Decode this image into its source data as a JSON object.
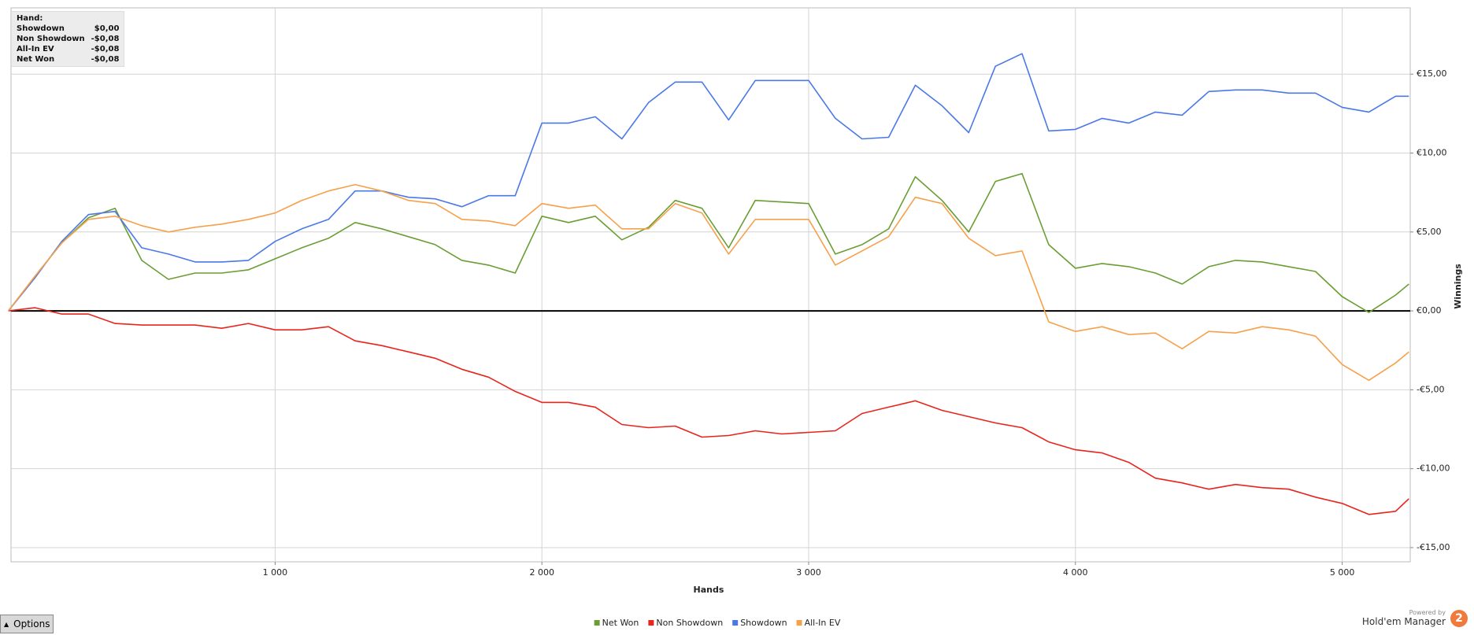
{
  "info_box": {
    "title": "Hand:",
    "rows": [
      [
        "Showdown",
        "$0,00"
      ],
      [
        "Non Showdown",
        "-$0,08"
      ],
      [
        "All-In EV",
        "-$0,08"
      ],
      [
        "Net Won",
        "-$0,08"
      ]
    ]
  },
  "options_button": "Options",
  "powered_by": "Powered by",
  "brand": "Hold'em Manager",
  "logo": "2",
  "chart_data": {
    "type": "line",
    "x_label": "Hands",
    "y_label": "Winnings",
    "xlim": [
      10,
      5255
    ],
    "ylim": [
      -15.9,
      19.2
    ],
    "xticks": [
      {
        "value": 1000,
        "label": "1 000"
      },
      {
        "value": 2000,
        "label": "2 000"
      },
      {
        "value": 3000,
        "label": "3 000"
      },
      {
        "value": 4000,
        "label": "4 000"
      },
      {
        "value": 5000,
        "label": "5 000"
      }
    ],
    "yticks": [
      {
        "value": -15,
        "label": "-€15,00"
      },
      {
        "value": -10,
        "label": "-€10,00"
      },
      {
        "value": -5,
        "label": "-€5,00"
      },
      {
        "value": 0,
        "label": "€0,00"
      },
      {
        "value": 5,
        "label": "€5,00"
      },
      {
        "value": 10,
        "label": "€10,00"
      },
      {
        "value": 15,
        "label": "€15,00"
      }
    ],
    "grid": true,
    "legend": "bottom",
    "x": [
      0,
      100,
      200,
      300,
      400,
      500,
      600,
      700,
      800,
      900,
      1000,
      1100,
      1200,
      1300,
      1400,
      1500,
      1600,
      1700,
      1800,
      1900,
      2000,
      2100,
      2200,
      2300,
      2400,
      2500,
      2600,
      2700,
      2800,
      2900,
      3000,
      3100,
      3200,
      3300,
      3400,
      3500,
      3600,
      3700,
      3800,
      3900,
      4000,
      4100,
      4200,
      4300,
      4400,
      4500,
      4600,
      4700,
      4800,
      4900,
      5000,
      5100,
      5200,
      5250
    ],
    "series": [
      {
        "name": "Net Won",
        "color": "#6a9e34",
        "values": [
          0,
          2.2,
          4.3,
          5.9,
          6.5,
          3.2,
          2.0,
          2.4,
          2.4,
          2.6,
          3.3,
          4.0,
          4.6,
          5.6,
          5.2,
          4.7,
          4.2,
          3.2,
          2.9,
          2.4,
          6.0,
          5.6,
          6.0,
          4.5,
          5.3,
          7.0,
          6.5,
          4.0,
          7.0,
          6.9,
          6.8,
          3.6,
          4.2,
          5.2,
          8.5,
          7.0,
          5.0,
          8.2,
          8.7,
          4.2,
          2.7,
          3.0,
          2.8,
          2.4,
          1.7,
          2.8,
          3.2,
          3.1,
          2.8,
          2.5,
          0.9,
          -0.1,
          1.0,
          1.7
        ]
      },
      {
        "name": "Non Showdown",
        "color": "#e8241c",
        "values": [
          0,
          0.2,
          -0.2,
          -0.2,
          -0.8,
          -0.9,
          -0.9,
          -0.9,
          -1.1,
          -0.8,
          -1.2,
          -1.2,
          -1.0,
          -1.9,
          -2.2,
          -2.6,
          -3.0,
          -3.7,
          -4.2,
          -5.1,
          -5.8,
          -5.8,
          -6.1,
          -7.2,
          -7.4,
          -7.3,
          -8.0,
          -7.9,
          -7.6,
          -7.8,
          -7.7,
          -7.6,
          -6.5,
          -6.1,
          -5.7,
          -6.3,
          -6.7,
          -7.1,
          -7.4,
          -8.3,
          -8.8,
          -9.0,
          -9.6,
          -10.6,
          -10.9,
          -11.3,
          -11.0,
          -11.2,
          -11.3,
          -11.8,
          -12.2,
          -12.9,
          -12.7,
          -11.9
        ]
      },
      {
        "name": "Showdown",
        "color": "#4a78e8",
        "values": [
          0,
          2.1,
          4.4,
          6.1,
          6.3,
          4.0,
          3.6,
          3.1,
          3.1,
          3.2,
          4.4,
          5.2,
          5.8,
          7.6,
          7.6,
          7.2,
          7.1,
          6.6,
          7.3,
          7.3,
          11.9,
          11.9,
          12.3,
          10.9,
          13.2,
          14.5,
          14.5,
          12.1,
          14.6,
          14.6,
          14.6,
          12.2,
          10.9,
          11.0,
          14.3,
          13.0,
          11.3,
          15.5,
          16.3,
          11.4,
          11.5,
          12.2,
          11.9,
          12.6,
          12.4,
          13.9,
          14.0,
          14.0,
          13.8,
          13.8,
          12.9,
          12.6,
          13.6,
          13.6
        ]
      },
      {
        "name": "All-In EV",
        "color": "#f7a04a",
        "values": [
          0,
          2.2,
          4.3,
          5.8,
          6.0,
          5.4,
          5.0,
          5.3,
          5.5,
          5.8,
          6.2,
          7.0,
          7.6,
          8.0,
          7.6,
          7.0,
          6.8,
          5.8,
          5.7,
          5.4,
          6.8,
          6.5,
          6.7,
          5.2,
          5.2,
          6.8,
          6.2,
          3.6,
          5.8,
          5.8,
          5.8,
          2.9,
          3.8,
          4.7,
          7.2,
          6.8,
          4.6,
          3.5,
          3.8,
          -0.7,
          -1.3,
          -1.0,
          -1.5,
          -1.4,
          -2.4,
          -1.3,
          -1.4,
          -1.0,
          -1.2,
          -1.6,
          -3.4,
          -4.4,
          -3.3,
          -2.6
        ]
      }
    ]
  }
}
